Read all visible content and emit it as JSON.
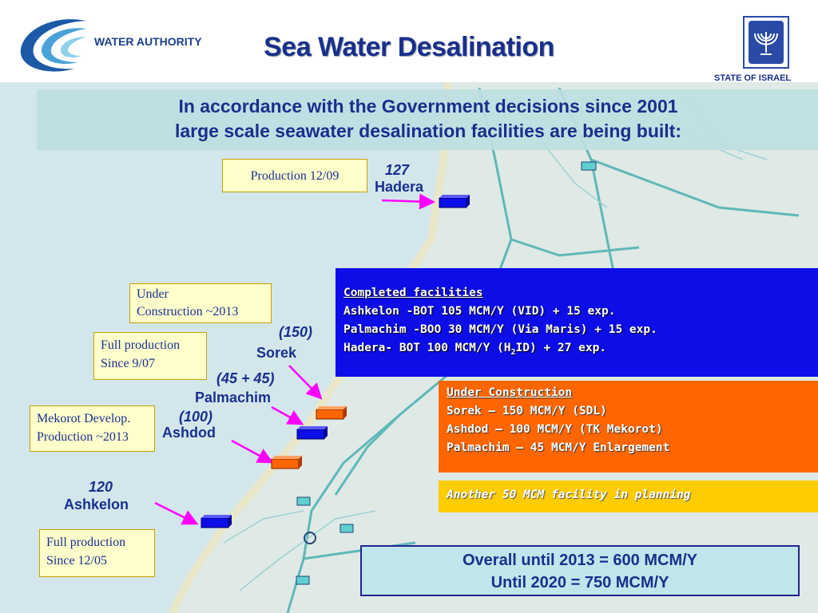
{
  "header": {
    "logo_text": "WATER AUTHORITY",
    "title": "Sea Water Desalination",
    "state_label": "STATE OF ISRAEL"
  },
  "banner": {
    "line1": "In accordance with the Government decisions since 2001",
    "line2": "large scale seawater desalination facilities are being built:"
  },
  "sites": {
    "hadera": {
      "capacity": "127",
      "name": "Hadera",
      "status_line1": "Production 12/09"
    },
    "sorek": {
      "capacity": "(150)",
      "name": "Sorek",
      "status_line1": "Under",
      "status_line2": "Construction ~2013"
    },
    "palmachim": {
      "capacity": "(45 + 45)",
      "name": "Palmachim",
      "status_line1": "Full production",
      "status_line2": "Since 9/07"
    },
    "ashdod": {
      "capacity": "(100)",
      "name": "Ashdod",
      "status_line1": "Mekorot Develop.",
      "status_line2": "Production ~2013"
    },
    "ashkelon": {
      "capacity": "120",
      "name": "Ashkelon",
      "status_line1": "Full production",
      "status_line2": "Since 12/05"
    }
  },
  "completed": {
    "heading": "Completed facilities",
    "items": [
      "Ashkelon -BOT 105  MCM/Y (VID) + 15 exp.",
      "Palmachim -BOO 30 MCM/Y (Via Maris) + 15 exp."
    ],
    "hadera_pre": "Hadera- BOT 100 MCM/Y (H",
    "hadera_sub": "2",
    "hadera_post": "ID) + 27 exp."
  },
  "under_construction": {
    "heading": "Under Construction",
    "items": [
      "Sorek – 150 MCM/Y (SDL)",
      "Ashdod – 100 MCM/Y (TK Mekorot)",
      "Palmachim – 45 MCM/Y Enlargement"
    ]
  },
  "planning": {
    "text": "Another 50 MCM facility in planning"
  },
  "overall": {
    "line1": "Overall until 2013 = 600 MCM/Y",
    "line2": "Until 2020 = 750 MCM/Y"
  },
  "colors": {
    "completed_box": "#0d0de8",
    "construction_box": "#ff6600",
    "planning_box": "#ffcc00",
    "marker_completed": "#0d0de8",
    "marker_construction": "#ff6600",
    "arrow": "#ff00ff",
    "title": "#1a2f8c"
  }
}
